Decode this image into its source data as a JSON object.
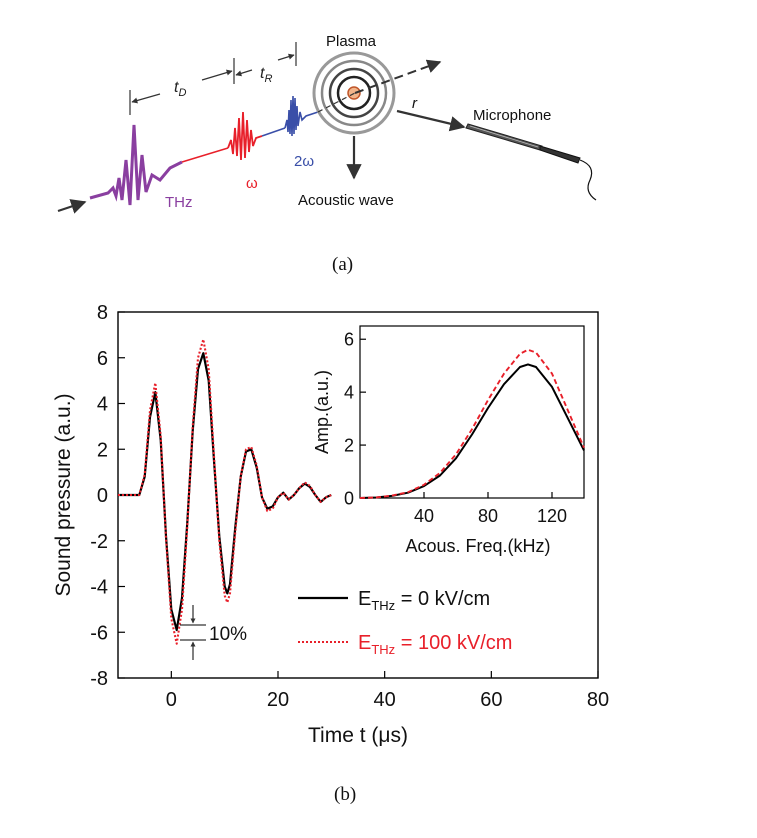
{
  "panel_a": {
    "caption": "(a)",
    "labels": {
      "plasma": "Plasma",
      "microphone": "Microphone",
      "acoustic_wave": "Acoustic wave",
      "r": "r",
      "t_d": "t",
      "t_d_sub": "D",
      "t_r": "t",
      "t_r_sub": "R",
      "thz": "THz",
      "omega": "ω",
      "two_omega": "2ω"
    },
    "colors": {
      "thz": "#8a3fa0",
      "omega": "#e8202a",
      "two_omega": "#3a4fa8"
    }
  },
  "panel_b": {
    "caption": "(b)",
    "inset_xlabel": "Acous. Freq.(kHz)",
    "inset_ylabel": "Amp.(a.u.)",
    "annotation": "10%",
    "legend": [
      {
        "label": "E",
        "sub": "THz",
        "suffix": " = 0 kV/cm",
        "color": "#000000",
        "style": "solid"
      },
      {
        "label": "E",
        "sub": "THz",
        "suffix": " = 100 kV/cm",
        "color": "#e8202a",
        "style": "dotted"
      }
    ]
  },
  "chart_data": [
    {
      "type": "line",
      "xlabel": "Time t (μs)",
      "ylabel": "Sound pressure (a.u.)",
      "xlim": [
        -10,
        80
      ],
      "ylim": [
        -8,
        8
      ],
      "xticks": [
        0,
        20,
        40,
        60,
        80
      ],
      "yticks": [
        -8,
        -6,
        -4,
        -2,
        0,
        2,
        4,
        6,
        8
      ],
      "series": [
        {
          "name": "E THz = 0 kV/cm",
          "color": "#000000",
          "x": [
            -10,
            -6,
            -5,
            -4,
            -3,
            -2,
            -1,
            0,
            1,
            2,
            3,
            4,
            5,
            6,
            7,
            8,
            9,
            10,
            10.5,
            11,
            12,
            13,
            14,
            15,
            16,
            17,
            18,
            19,
            20,
            21,
            22,
            23,
            24,
            25,
            26,
            27,
            28,
            29,
            30
          ],
          "y": [
            0,
            0,
            0.8,
            3.4,
            4.5,
            2.4,
            -1.8,
            -5.0,
            -5.9,
            -4.5,
            -1.2,
            2.8,
            5.5,
            6.2,
            5.0,
            1.5,
            -1.8,
            -4.0,
            -4.3,
            -3.9,
            -1.4,
            0.8,
            1.9,
            2.0,
            1.2,
            -0.1,
            -0.6,
            -0.5,
            -0.1,
            0.1,
            -0.2,
            0,
            0.3,
            0.5,
            0.35,
            0,
            -0.3,
            -0.1,
            0
          ]
        },
        {
          "name": "E THz = 100 kV/cm",
          "color": "#e8202a",
          "x": [
            -10,
            -6,
            -5,
            -4,
            -3,
            -2,
            -1,
            0,
            1,
            2,
            3,
            4,
            5,
            6,
            7,
            8,
            9,
            10,
            10.5,
            11,
            12,
            13,
            14,
            15,
            16,
            17,
            18,
            19,
            20,
            21,
            22,
            23,
            24,
            25,
            26,
            27,
            28,
            29,
            30
          ],
          "y": [
            0,
            0,
            0.9,
            3.7,
            4.9,
            2.6,
            -1.9,
            -5.4,
            -6.5,
            -5.0,
            -1.4,
            3.0,
            6.0,
            6.8,
            5.5,
            1.7,
            -2.0,
            -4.4,
            -4.7,
            -4.3,
            -1.6,
            0.8,
            2.0,
            2.1,
            1.3,
            -0.1,
            -0.7,
            -0.6,
            -0.1,
            0.1,
            -0.2,
            0,
            0.3,
            0.55,
            0.4,
            0,
            -0.3,
            -0.1,
            0
          ]
        }
      ]
    },
    {
      "type": "line",
      "xlabel": "Acous. Freq.(kHz)",
      "ylabel": "Amp.(a.u.)",
      "xlim": [
        0,
        140
      ],
      "ylim": [
        0,
        6.5
      ],
      "xticks": [
        40,
        80,
        120
      ],
      "yticks": [
        0,
        2,
        4,
        6
      ],
      "series": [
        {
          "name": "E THz = 0 kV/cm",
          "color": "#000000",
          "x": [
            0,
            10,
            20,
            30,
            40,
            50,
            60,
            70,
            80,
            90,
            100,
            105,
            110,
            120,
            130,
            140
          ],
          "y": [
            0,
            0.02,
            0.08,
            0.2,
            0.45,
            0.85,
            1.5,
            2.4,
            3.4,
            4.3,
            4.95,
            5.05,
            4.95,
            4.2,
            3.0,
            1.8
          ]
        },
        {
          "name": "E THz = 100 kV/cm",
          "color": "#e8202a",
          "x": [
            0,
            10,
            20,
            30,
            40,
            50,
            60,
            70,
            80,
            90,
            100,
            105,
            110,
            120,
            130,
            140
          ],
          "y": [
            0,
            0.02,
            0.09,
            0.22,
            0.5,
            0.95,
            1.65,
            2.6,
            3.7,
            4.7,
            5.45,
            5.6,
            5.5,
            4.7,
            3.3,
            1.9
          ]
        }
      ]
    }
  ]
}
